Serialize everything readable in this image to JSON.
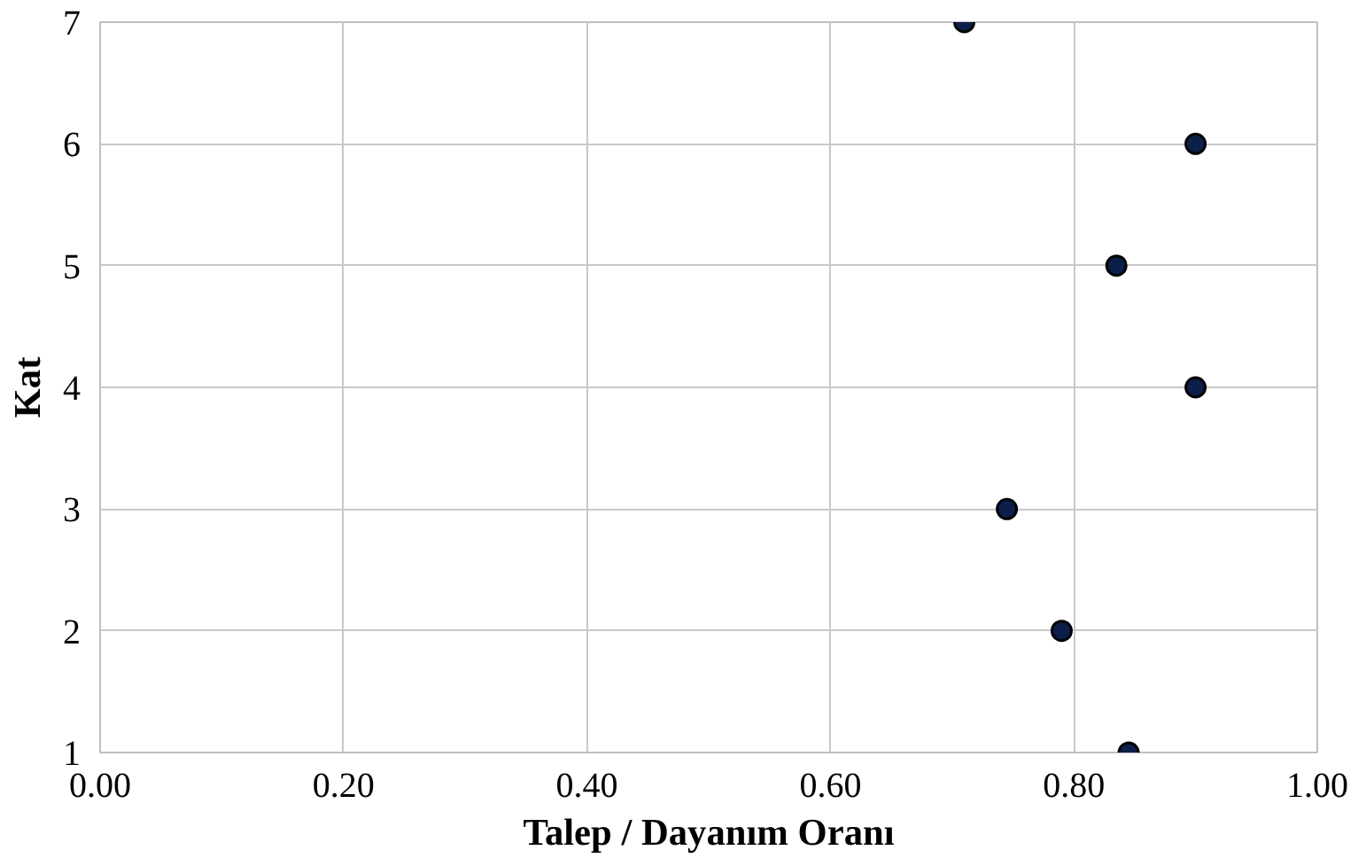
{
  "chart_data": {
    "type": "scatter",
    "xlabel": "Talep / Dayanım Oranı",
    "ylabel": "Kat",
    "x": [
      0.845,
      0.79,
      0.745,
      0.9,
      0.835,
      0.9,
      0.71
    ],
    "series": [
      {
        "color": "#0b1f4a",
        "values": [
          1,
          2,
          3,
          4,
          5,
          6,
          7
        ]
      }
    ],
    "xlim": [
      0,
      1
    ],
    "xticks": [
      {
        "value": 0,
        "label": "0.00"
      },
      {
        "value": 0.2,
        "label": "0.20"
      },
      {
        "value": 0.4,
        "label": "0.40"
      },
      {
        "value": 0.6,
        "label": "0.60"
      },
      {
        "value": 0.8,
        "label": "0.80"
      },
      {
        "value": 1,
        "label": "1.00"
      }
    ],
    "ylim": [
      1,
      7
    ],
    "yticks": [
      1,
      2,
      3,
      4,
      5,
      6,
      7
    ],
    "grid": true,
    "marker": "circle"
  }
}
